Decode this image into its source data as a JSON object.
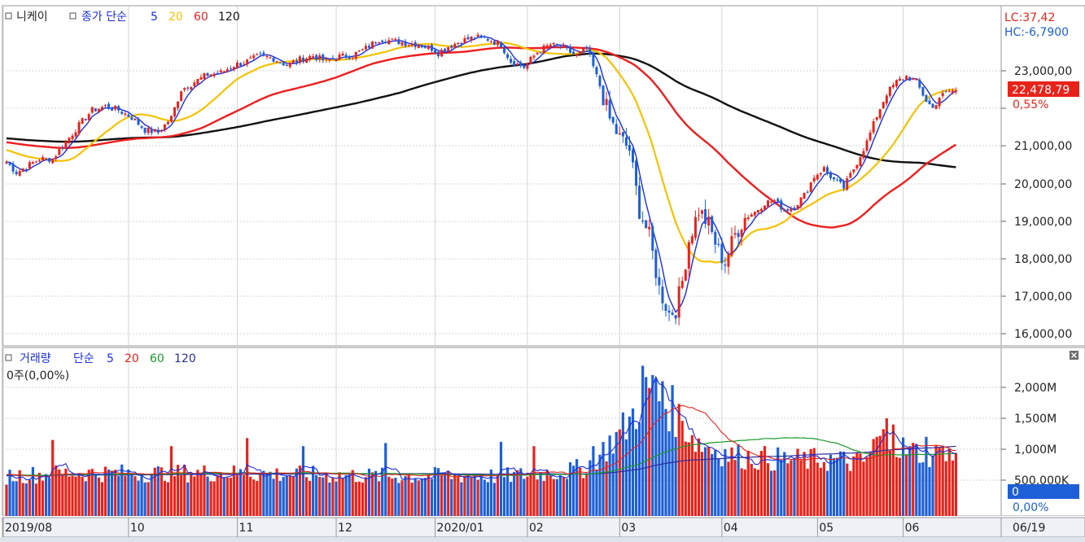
{
  "price_panel": {
    "legend": {
      "symbol": "니케이",
      "indicator": "종가 단순",
      "periods": [
        "5",
        "20",
        "60",
        "120"
      ]
    },
    "lc_label": "LC:37,42",
    "hc_label": "HC:-6,7900",
    "last_price_label": "22,478,79",
    "change_label": "0,55%"
  },
  "volume_panel": {
    "legend": {
      "symbol": "거래량",
      "indicator": "단순",
      "periods": [
        "5",
        "20",
        "60",
        "120"
      ]
    },
    "current_label": "0주(0,00%)",
    "last_value_label": "0",
    "last_change_label": "0,00%"
  },
  "date_axis": {
    "end_label": "06/19"
  },
  "colors": {
    "up": "#e8231a",
    "down": "#1d5fd6",
    "ma5": "#1a2ee0",
    "ma20": "#f5c200",
    "ma60": "#ee1d1d",
    "ma120": "#111111",
    "vol_ma20": "#e8231a",
    "vol_ma60": "#1a9a2a",
    "vol_ma120": "#2a2aa0",
    "tag_red": "#e8231a",
    "tag_blue": "#1d5fd6"
  },
  "chart_data": [
    {
      "type": "candlestick",
      "y_axis": {
        "range": [
          15900,
          23800
        ],
        "tick_values": [
          16000,
          17000,
          18000,
          19000,
          20000,
          21000,
          22000,
          23000
        ],
        "tick_labels": [
          "16,000,00",
          "17,000,00",
          "18,000,00",
          "19,000,00",
          "20,000,00",
          "21,000,00",
          "22,000,00",
          "23,000,00"
        ]
      },
      "x_axis": {
        "tick_labels": [
          "2019/08",
          "10",
          "11",
          "12",
          "2020/01",
          "02",
          "03",
          "04",
          "05",
          "06"
        ],
        "tick_index": [
          0,
          38,
          71,
          101,
          131,
          159,
          187,
          218,
          247,
          273
        ]
      },
      "close_anchors": [
        [
          0,
          20580
        ],
        [
          3,
          20300
        ],
        [
          6,
          20450
        ],
        [
          10,
          20650
        ],
        [
          14,
          20660
        ],
        [
          18,
          21100
        ],
        [
          22,
          21550
        ],
        [
          26,
          21950
        ],
        [
          30,
          22050
        ],
        [
          34,
          21950
        ],
        [
          38,
          21750
        ],
        [
          42,
          21420
        ],
        [
          46,
          21350
        ],
        [
          50,
          21750
        ],
        [
          53,
          22500
        ],
        [
          57,
          22700
        ],
        [
          61,
          22900
        ],
        [
          65,
          22950
        ],
        [
          69,
          23150
        ],
        [
          73,
          23250
        ],
        [
          77,
          23400
        ],
        [
          81,
          23330
        ],
        [
          85,
          23150
        ],
        [
          89,
          23300
        ],
        [
          93,
          23400
        ],
        [
          97,
          23250
        ],
        [
          101,
          23380
        ],
        [
          105,
          23420
        ],
        [
          109,
          23600
        ],
        [
          113,
          23850
        ],
        [
          117,
          23800
        ],
        [
          121,
          23750
        ],
        [
          125,
          23700
        ],
        [
          129,
          23600
        ],
        [
          131,
          23480
        ],
        [
          134,
          23650
        ],
        [
          138,
          23800
        ],
        [
          142,
          23900
        ],
        [
          146,
          23850
        ],
        [
          150,
          23700
        ],
        [
          153,
          23250
        ],
        [
          157,
          23100
        ],
        [
          161,
          23500
        ],
        [
          165,
          23700
        ],
        [
          169,
          23600
        ],
        [
          173,
          23400
        ],
        [
          176,
          23600
        ],
        [
          180,
          22600
        ],
        [
          183,
          21700
        ],
        [
          186,
          21200
        ],
        [
          189,
          20900
        ],
        [
          192,
          19300
        ],
        [
          195,
          18600
        ],
        [
          198,
          17200
        ],
        [
          201,
          16550
        ],
        [
          203,
          16650
        ],
        [
          205,
          17400
        ],
        [
          207,
          18500
        ],
        [
          210,
          19300
        ],
        [
          213,
          18900
        ],
        [
          216,
          18200
        ],
        [
          218,
          17900
        ],
        [
          221,
          18650
        ],
        [
          224,
          19100
        ],
        [
          227,
          19250
        ],
        [
          230,
          19500
        ],
        [
          233,
          19550
        ],
        [
          236,
          19300
        ],
        [
          239,
          19400
        ],
        [
          242,
          19700
        ],
        [
          245,
          20200
        ],
        [
          248,
          20400
        ],
        [
          251,
          20100
        ],
        [
          254,
          19900
        ],
        [
          257,
          20400
        ],
        [
          261,
          21100
        ],
        [
          264,
          21800
        ],
        [
          267,
          22400
        ],
        [
          270,
          22700
        ],
        [
          273,
          22850
        ],
        [
          276,
          22700
        ],
        [
          279,
          22200
        ],
        [
          281,
          22000
        ],
        [
          283,
          22300
        ],
        [
          286,
          22450
        ],
        [
          288,
          22478.79
        ]
      ],
      "last_close": 22478.79,
      "moving_averages": [
        "5",
        "20",
        "60",
        "120"
      ]
    },
    {
      "type": "bar",
      "y_axis": {
        "range": [
          0,
          2500
        ],
        "unit": "M",
        "tick_values": [
          500,
          1000,
          1500,
          2000
        ],
        "tick_labels": [
          "500,000K",
          "1,000M",
          "1,500M",
          "2,000M"
        ]
      },
      "volume_anchors": [
        [
          0,
          570
        ],
        [
          20,
          620
        ],
        [
          40,
          610
        ],
        [
          60,
          620
        ],
        [
          80,
          600
        ],
        [
          100,
          580
        ],
        [
          120,
          560
        ],
        [
          140,
          580
        ],
        [
          150,
          560
        ],
        [
          160,
          600
        ],
        [
          170,
          640
        ],
        [
          175,
          700
        ],
        [
          180,
          900
        ],
        [
          183,
          1100
        ],
        [
          186,
          1250
        ],
        [
          189,
          1450
        ],
        [
          192,
          1750
        ],
        [
          195,
          1900
        ],
        [
          198,
          1850
        ],
        [
          201,
          1700
        ],
        [
          204,
          1500
        ],
        [
          207,
          1300
        ],
        [
          210,
          1100
        ],
        [
          215,
          1000
        ],
        [
          220,
          900
        ],
        [
          230,
          850
        ],
        [
          240,
          820
        ],
        [
          250,
          830
        ],
        [
          260,
          780
        ],
        [
          265,
          1200
        ],
        [
          268,
          1100
        ],
        [
          273,
          980
        ],
        [
          280,
          920
        ],
        [
          288,
          880
        ]
      ],
      "volume_spikes": [
        [
          14,
          1150
        ],
        [
          50,
          1050
        ],
        [
          73,
          1180
        ],
        [
          90,
          1050
        ],
        [
          115,
          1100
        ],
        [
          150,
          1120
        ],
        [
          160,
          1050
        ],
        [
          178,
          1050
        ],
        [
          193,
          2350
        ],
        [
          196,
          2200
        ],
        [
          199,
          2100
        ],
        [
          267,
          1500
        ],
        [
          269,
          1400
        ],
        [
          279,
          1200
        ],
        [
          284,
          1050
        ]
      ],
      "moving_averages": [
        "5",
        "20",
        "60",
        "120"
      ]
    }
  ]
}
